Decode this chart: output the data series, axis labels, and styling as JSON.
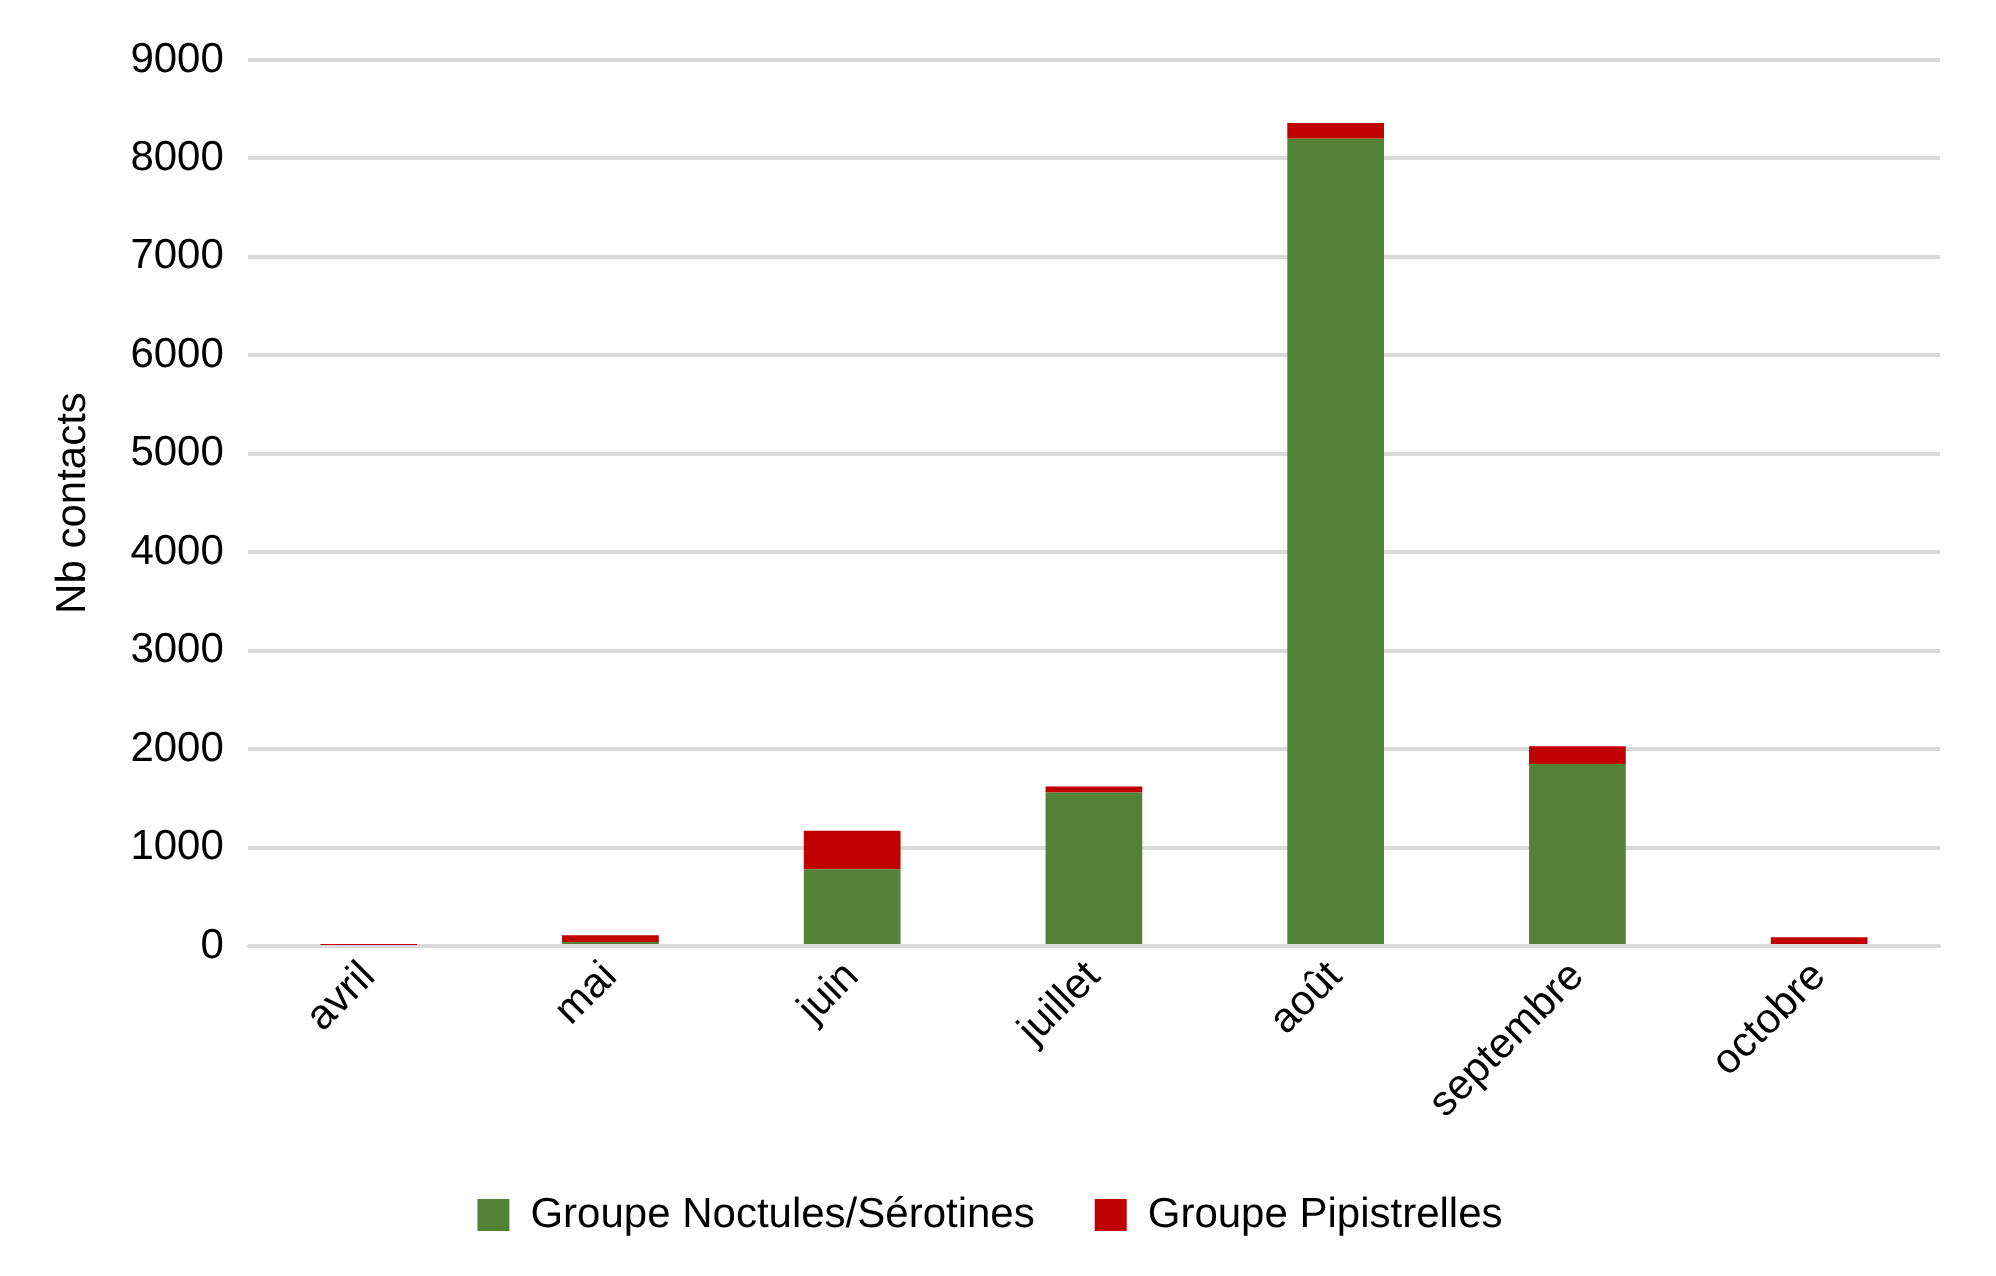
{
  "chart_data": {
    "type": "bar",
    "stacked": true,
    "ylabel": "Nb contacts",
    "categories": [
      "avril",
      "mai",
      "juin",
      "juillet",
      "août",
      "septembre",
      "octobre"
    ],
    "series": [
      {
        "name": "Groupe Noctules/Sérotines",
        "color": "#538135",
        "values": [
          0,
          40,
          780,
          1560,
          8200,
          1850,
          0
        ]
      },
      {
        "name": "Groupe Pipistrelles",
        "color": "#c00000",
        "values": [
          10,
          70,
          390,
          60,
          160,
          180,
          90
        ]
      }
    ],
    "ylim": [
      0,
      9000
    ],
    "yticks": [
      0,
      1000,
      2000,
      3000,
      4000,
      5000,
      6000,
      7000,
      8000,
      9000
    ],
    "grid": "y",
    "legend": "bottom"
  }
}
